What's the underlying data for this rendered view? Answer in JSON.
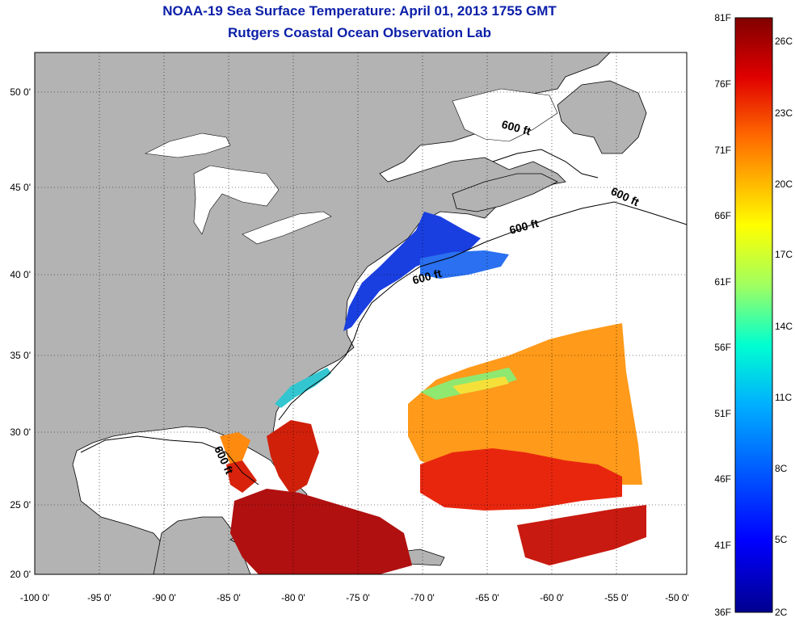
{
  "title": "NOAA-19 Sea Surface Temperature:  April 01, 2013 1755 GMT",
  "subtitle": "Rutgers Coastal Ocean Observation Lab",
  "lat_ticks": [
    "50 0'",
    "45 0'",
    "40 0'",
    "35 0'",
    "30 0'",
    "25 0'",
    "20 0'"
  ],
  "lon_ticks": [
    "-100 0'",
    "-95 0'",
    "-90 0'",
    "-85 0'",
    "-80 0'",
    "-75 0'",
    "-70 0'",
    "-65 0'",
    "-60 0'",
    "-55 0'",
    "-50 0'"
  ],
  "depth_label": "600 ft",
  "colorbar": {
    "f_ticks": [
      "81F",
      "76F",
      "71F",
      "66F",
      "61F",
      "56F",
      "51F",
      "46F",
      "41F",
      "36F"
    ],
    "c_ticks": [
      "26C",
      "23C",
      "20C",
      "17C",
      "14C",
      "11C",
      "8C",
      "5C",
      "2C"
    ]
  },
  "colors": {
    "title": "#0b1fa8",
    "land": "#b3b3b3",
    "water_missing": "#ffffff"
  }
}
